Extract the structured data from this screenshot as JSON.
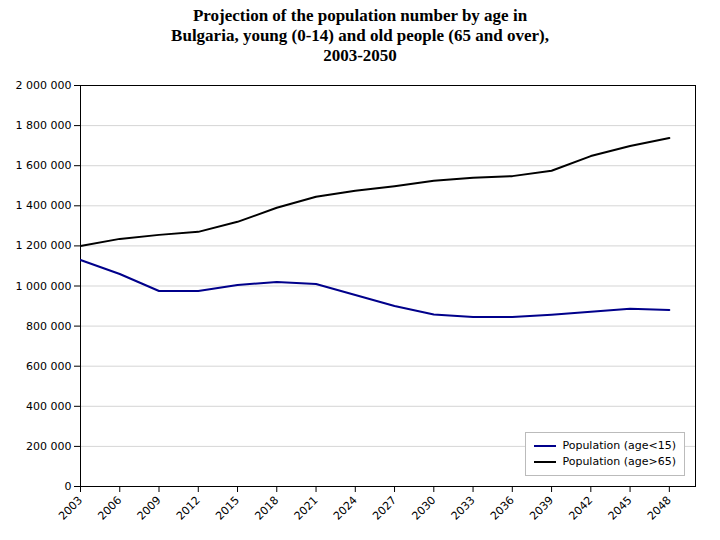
{
  "chart_data": {
    "type": "line",
    "title": "Projection of the population number by age in\nBulgaria, young (0-14) and old people (65 and over),\n2003-2050",
    "x": [
      2003,
      2006,
      2009,
      2012,
      2015,
      2018,
      2021,
      2024,
      2027,
      2030,
      2033,
      2036,
      2039,
      2042,
      2045,
      2048
    ],
    "series": [
      {
        "name": "Population (age<15)",
        "color": "#00008B",
        "values": [
          1130000,
          1060000,
          975000,
          975000,
          1005000,
          1020000,
          1010000,
          955000,
          900000,
          858000,
          845000,
          845000,
          857000,
          872000,
          887000,
          880000
        ]
      },
      {
        "name": "Population (age>65)",
        "color": "#000000",
        "values": [
          1200000,
          1235000,
          1255000,
          1270000,
          1320000,
          1390000,
          1445000,
          1475000,
          1498000,
          1525000,
          1540000,
          1548000,
          1575000,
          1648000,
          1698000,
          1738000
        ]
      }
    ],
    "xlim": [
      2003,
      2050
    ],
    "xticks": [
      2003,
      2006,
      2009,
      2012,
      2015,
      2018,
      2021,
      2024,
      2027,
      2030,
      2033,
      2036,
      2039,
      2042,
      2045,
      2048
    ],
    "ylim": [
      0,
      2000000
    ],
    "yticks": [
      0,
      {
        "value": 200000,
        "label": "200 000"
      },
      {
        "value": 400000,
        "label": "400 000"
      },
      {
        "value": 600000,
        "label": "600 000"
      },
      {
        "value": 800000,
        "label": "800 000"
      },
      {
        "value": 1000000,
        "label": "1 000 000"
      },
      {
        "value": 1200000,
        "label": "1 200 000"
      },
      {
        "value": 1400000,
        "label": "1 400 000"
      },
      {
        "value": 1600000,
        "label": "1 600 000"
      },
      {
        "value": 1800000,
        "label": "1 800 000"
      },
      {
        "value": 2000000,
        "label": "2 000 000"
      }
    ],
    "grid": true,
    "legend": "lower right"
  }
}
